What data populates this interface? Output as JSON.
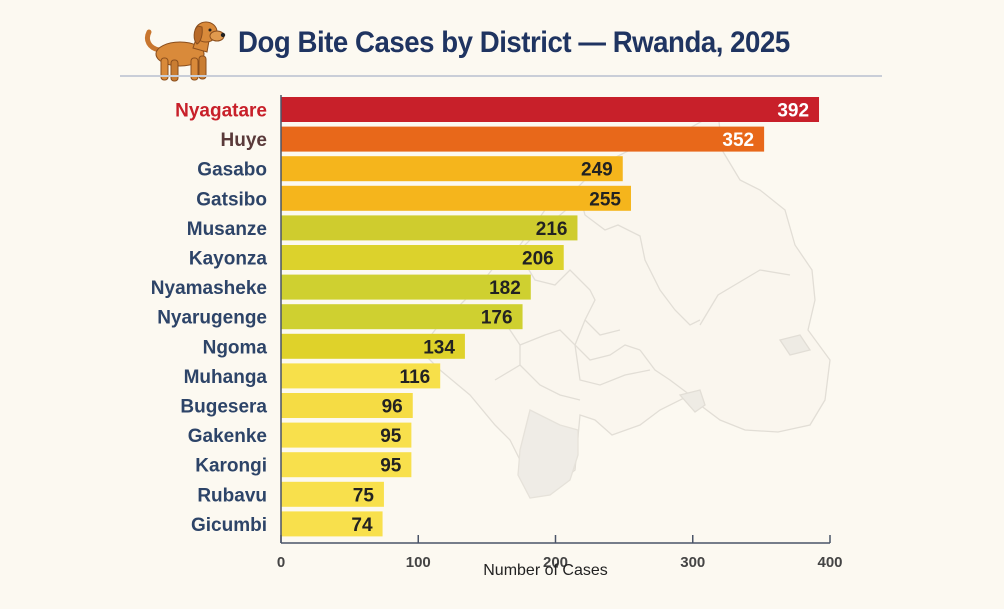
{
  "header": {
    "title": "Dog Bite Cases by District — Rwanda, 2025",
    "illustration": "dog-icon"
  },
  "chart_data": {
    "type": "bar",
    "orientation": "horizontal",
    "title": "Dog Bite Cases by District — Rwanda, 2025",
    "xlabel": "Number of Cases",
    "ylabel": "",
    "xlim": [
      0,
      400
    ],
    "x_ticks": [
      0,
      100,
      200,
      300,
      400
    ],
    "x_tick_labels": [
      "0",
      "100",
      "200",
      "300",
      "400"
    ],
    "grid": false,
    "legend": "none",
    "background": "faded map of Rwanda districts",
    "categories": [
      "Nyagatare",
      "Huye",
      "Gasabo",
      "Gatsibo",
      "Musanze",
      "Kayonza",
      "Nyamasheke",
      "Nyarugenge",
      "Ngoma",
      "Muhanga",
      "Bugesera",
      "Gakenke",
      "Karongi",
      "Rubavu",
      "Gicumbi"
    ],
    "values": [
      392,
      352,
      249,
      255,
      216,
      206,
      182,
      176,
      134,
      116,
      96,
      95,
      95,
      75,
      74
    ],
    "bar_colors": [
      "#c8202a",
      "#e8681a",
      "#f5b51c",
      "#f5b51c",
      "#cfcc2e",
      "#dcd22c",
      "#cfd030",
      "#cfd030",
      "#dfd22a",
      "#f7e04a",
      "#f5dc44",
      "#f8e04c",
      "#f8e04c",
      "#f8e04c",
      "#f8e04c"
    ],
    "label_colors": [
      "#c8202a",
      "#5a3a3a",
      "#2d4468",
      "#2d4468",
      "#2d4468",
      "#2d4468",
      "#2d4468",
      "#2d4468",
      "#2d4468",
      "#2d4468",
      "#2d4468",
      "#2d4468",
      "#2d4468",
      "#2d4468",
      "#2d4468"
    ],
    "value_label_colors": [
      "#ffffff",
      "#ffffff",
      "#222222",
      "#222222",
      "#222222",
      "#222222",
      "#222222",
      "#222222",
      "#222222",
      "#222222",
      "#222222",
      "#222222",
      "#222222",
      "#222222",
      "#222222"
    ]
  }
}
